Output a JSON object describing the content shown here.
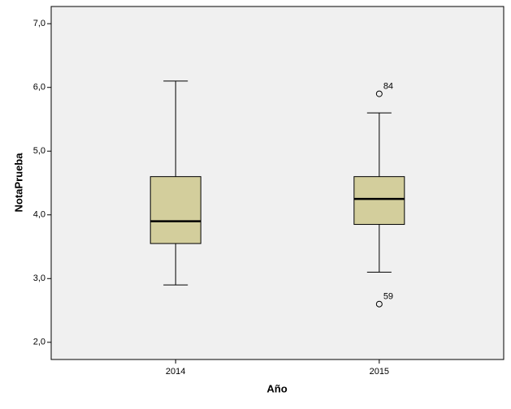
{
  "chart_data": {
    "type": "boxplot",
    "x_label": "Año",
    "y_label": "NotaPrueba",
    "categories": [
      "2014",
      "2015"
    ],
    "color": "#d3ce9c",
    "boxes": [
      {
        "min": 2.9,
        "q1": 3.55,
        "median": 3.9,
        "q3": 4.6,
        "max": 6.1,
        "outliers": []
      },
      {
        "min": 3.1,
        "q1": 3.85,
        "median": 4.25,
        "q3": 4.6,
        "max": 5.6,
        "outliers": [
          {
            "value": 5.9,
            "case": "84"
          },
          {
            "value": 2.6,
            "case": "59"
          }
        ]
      }
    ],
    "ylim": [
      1.73,
      7.27
    ],
    "yticks": [
      {
        "value": 2,
        "label": "2,0"
      },
      {
        "value": 3,
        "label": "3,0"
      },
      {
        "value": 4,
        "label": "4,0"
      },
      {
        "value": 5,
        "label": "5,0"
      },
      {
        "value": 6,
        "label": "6,0"
      },
      {
        "value": 7,
        "label": "7,0"
      }
    ]
  }
}
